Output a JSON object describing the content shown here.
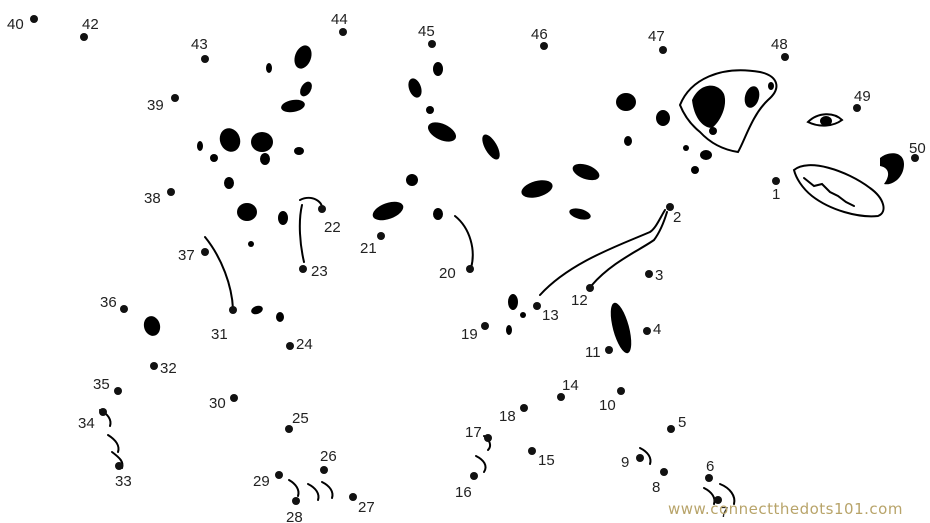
{
  "points": [
    {
      "label": "1"
    },
    {
      "label": "2"
    },
    {
      "label": "3"
    },
    {
      "label": "4"
    },
    {
      "label": "5"
    },
    {
      "label": "6"
    },
    {
      "label": "7"
    },
    {
      "label": "8"
    },
    {
      "label": "9"
    },
    {
      "label": "10"
    },
    {
      "label": "11"
    },
    {
      "label": "12"
    },
    {
      "label": "13"
    },
    {
      "label": "14"
    },
    {
      "label": "15"
    },
    {
      "label": "16"
    },
    {
      "label": "17"
    },
    {
      "label": "18"
    },
    {
      "label": "19"
    },
    {
      "label": "20"
    },
    {
      "label": "21"
    },
    {
      "label": "22"
    },
    {
      "label": "23"
    },
    {
      "label": "24"
    },
    {
      "label": "25"
    },
    {
      "label": "26"
    },
    {
      "label": "27"
    },
    {
      "label": "28"
    },
    {
      "label": "29"
    },
    {
      "label": "30"
    },
    {
      "label": "31"
    },
    {
      "label": "32"
    },
    {
      "label": "33"
    },
    {
      "label": "34"
    },
    {
      "label": "35"
    },
    {
      "label": "36"
    },
    {
      "label": "37"
    },
    {
      "label": "38"
    },
    {
      "label": "39"
    },
    {
      "label": "40"
    },
    {
      "label": "42"
    },
    {
      "label": "43"
    },
    {
      "label": "44"
    },
    {
      "label": "45"
    },
    {
      "label": "46"
    },
    {
      "label": "47"
    },
    {
      "label": "48"
    },
    {
      "label": "49"
    },
    {
      "label": "50"
    }
  ],
  "watermark": "www.connectthedots101.com"
}
